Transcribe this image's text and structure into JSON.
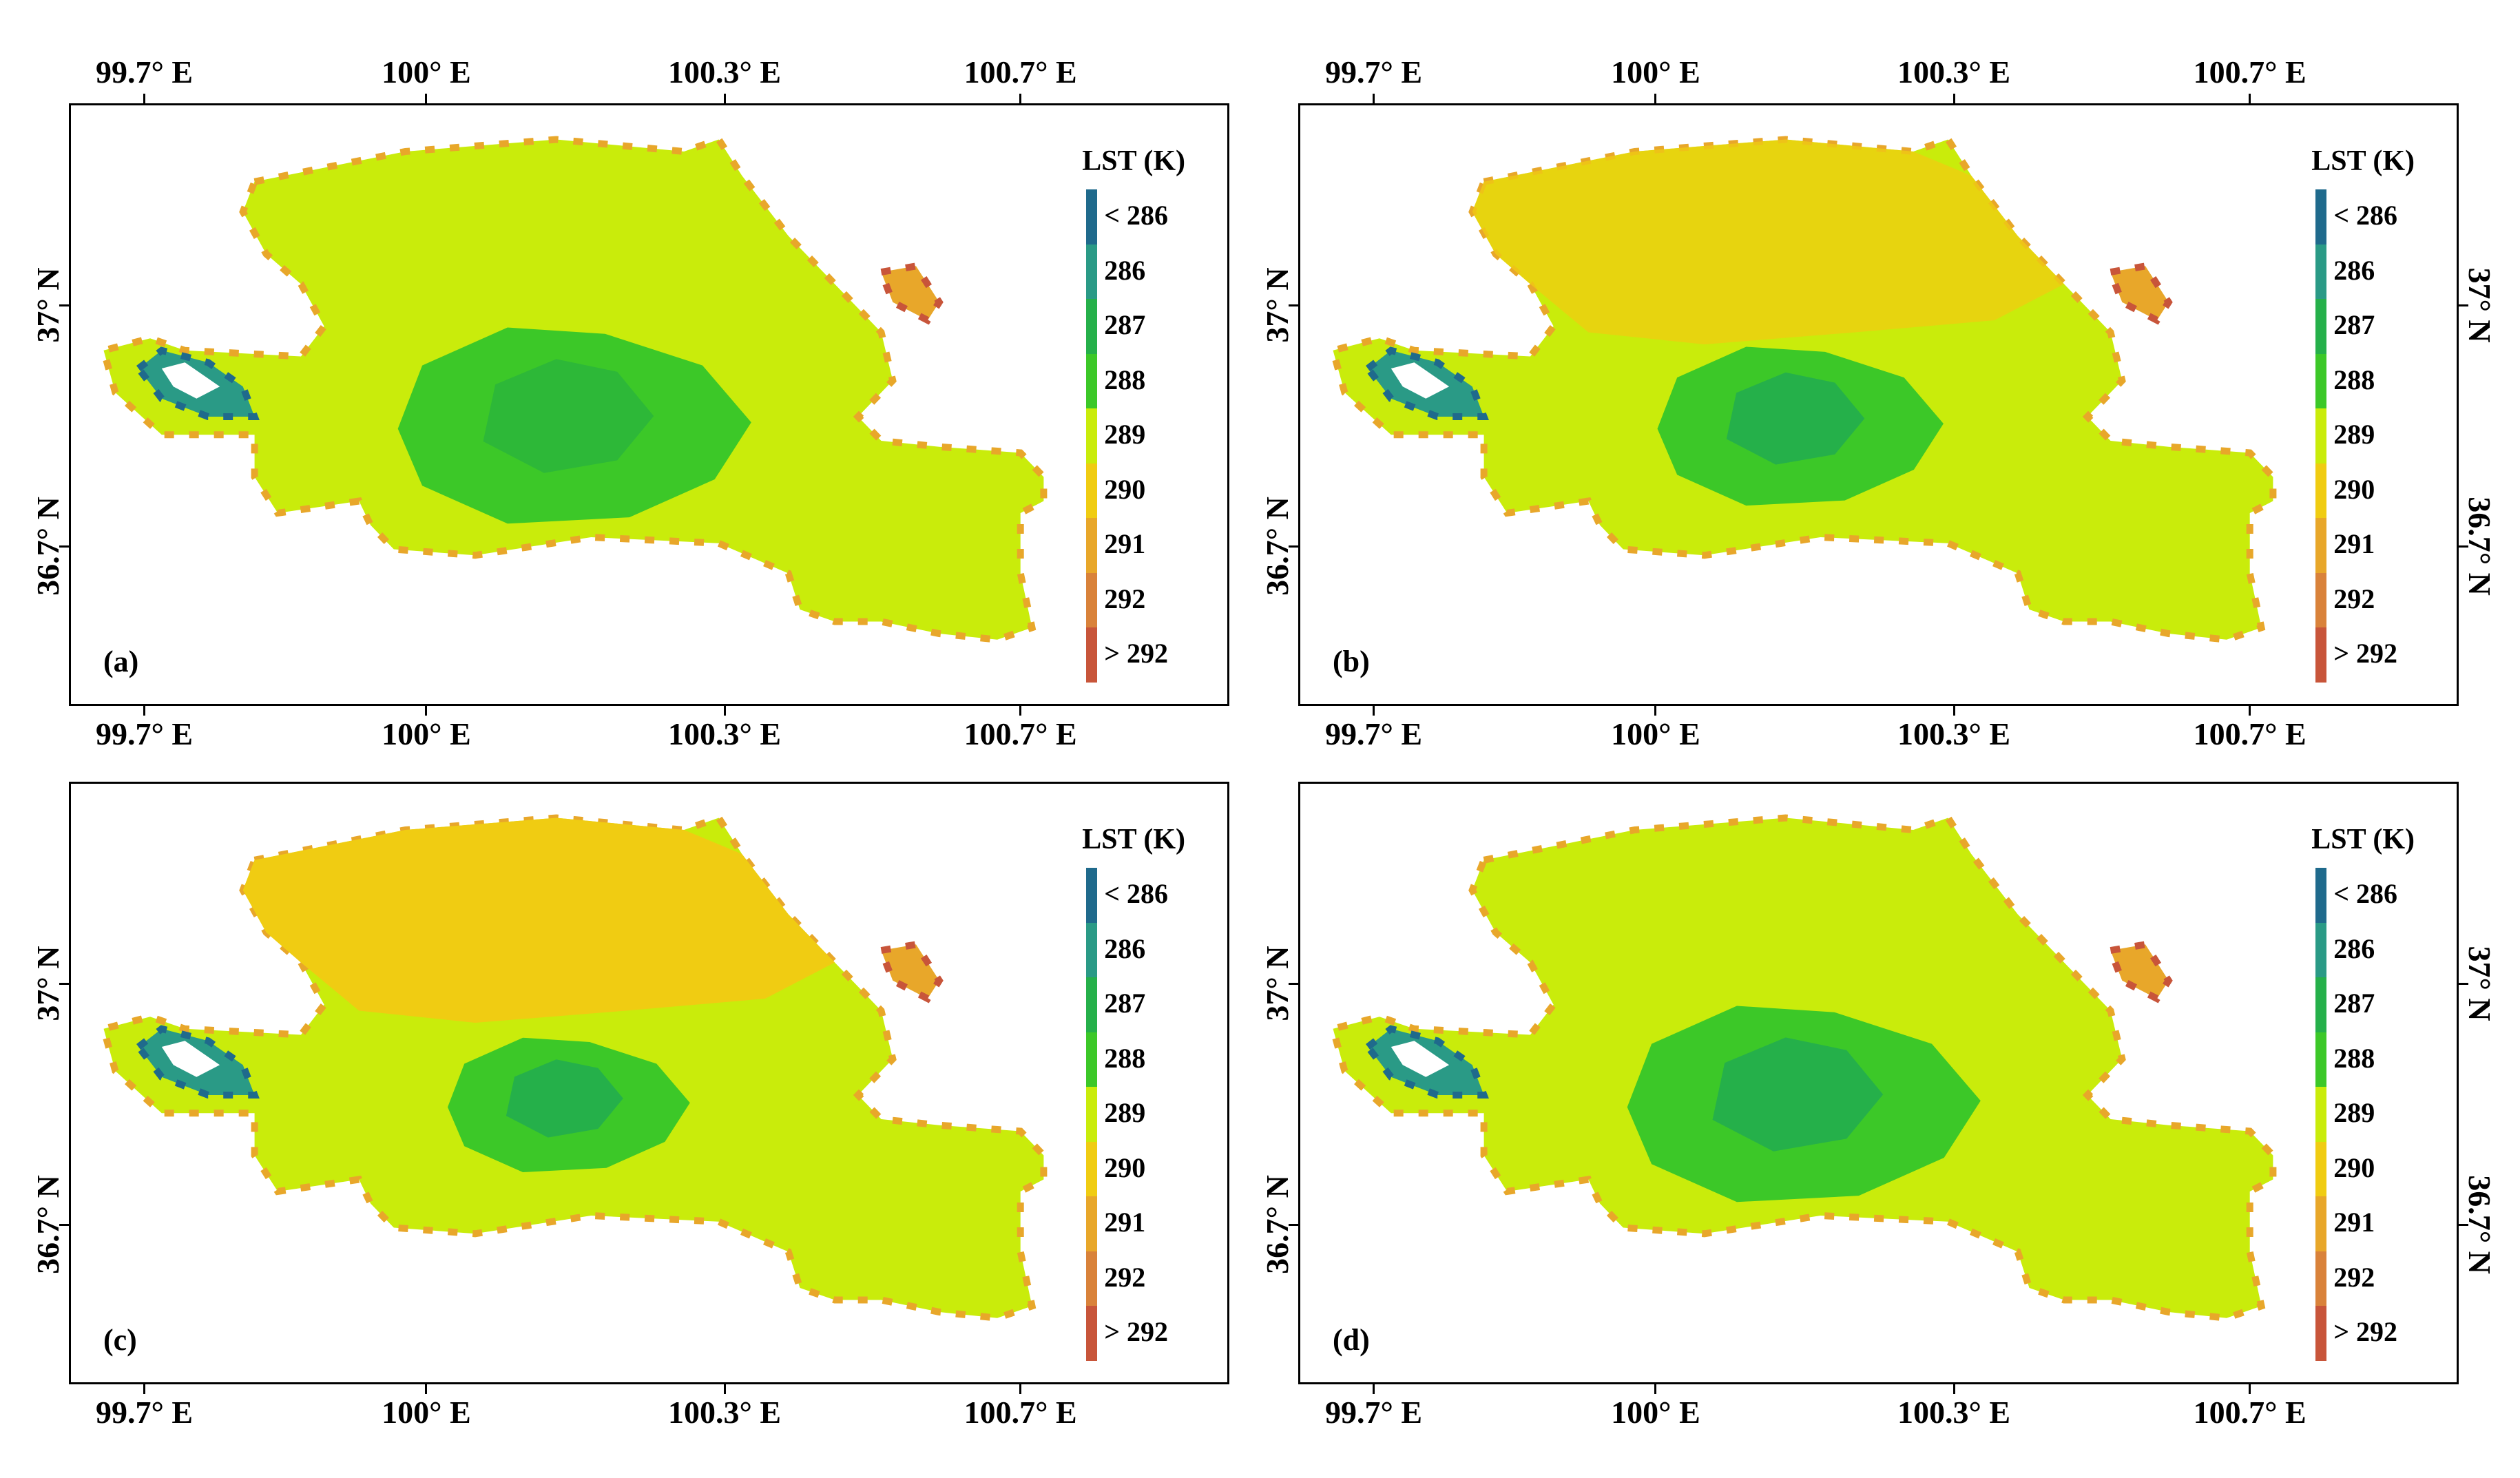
{
  "axes": {
    "lon_labels": [
      "99.7° E",
      "100° E",
      "100.3° E",
      "100.7° E"
    ],
    "lat_labels": [
      "37° N",
      "36.7° N"
    ]
  },
  "legend": {
    "title": "LST (K)",
    "classes": [
      "< 286",
      "286",
      "287",
      "288",
      "289",
      "290",
      "291",
      "292",
      "> 292"
    ],
    "colors": [
      "#1f6a8c",
      "#2a9a86",
      "#25b04a",
      "#3cc828",
      "#c9ec0b",
      "#f0cc12",
      "#e8a72a",
      "#d9823a",
      "#c8553a"
    ]
  },
  "panels": [
    {
      "label": "(a)"
    },
    {
      "label": "(b)"
    },
    {
      "label": "(c)"
    },
    {
      "label": "(d)"
    }
  ],
  "colors": {
    "frame": "#000000",
    "background": "#ffffff"
  }
}
